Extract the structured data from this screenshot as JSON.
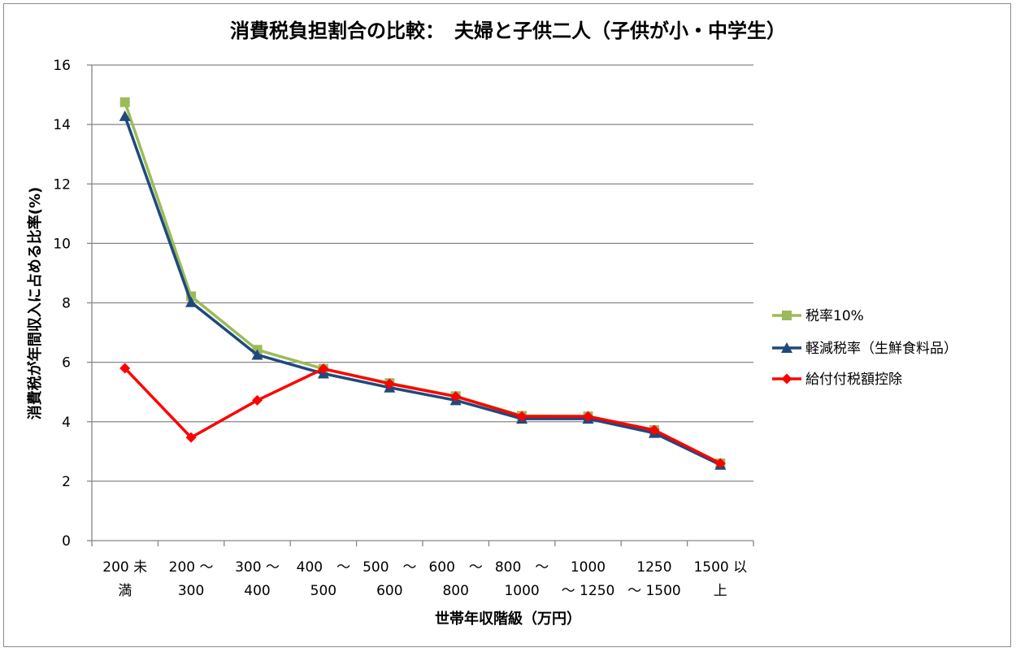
{
  "chart_data": {
    "type": "line",
    "title": "消費税負担割合の比較：　夫婦と子供二人（子供が小・中学生）",
    "xlabel": "世帯年収階級（万円）",
    "ylabel": "消費税が年間収入に占める比率(%)",
    "ylim": [
      0,
      16
    ],
    "yticks": [
      0,
      2,
      4,
      6,
      8,
      10,
      12,
      14,
      16
    ],
    "grid": true,
    "legend_position": "right",
    "categories": [
      [
        "200 未",
        "満"
      ],
      [
        "200 ～",
        "300"
      ],
      [
        "300 ～",
        "400"
      ],
      [
        "400　～",
        "500"
      ],
      [
        "500　～",
        "600"
      ],
      [
        "600　～",
        "800"
      ],
      [
        "800　～",
        "1000"
      ],
      [
        "1000",
        "～ 1250"
      ],
      [
        "1250",
        "～ 1500"
      ],
      [
        "1500 以",
        "上"
      ]
    ],
    "series": [
      {
        "name": "税率10%",
        "color": "#9bbb59",
        "marker": "square",
        "values": [
          14.75,
          8.22,
          6.42,
          5.78,
          5.3,
          4.86,
          4.2,
          4.18,
          3.72,
          2.6
        ]
      },
      {
        "name": "軽減税率（生鮮食料品）",
        "color": "#1f497d",
        "marker": "triangle",
        "values": [
          14.28,
          8.02,
          6.25,
          5.62,
          5.15,
          4.72,
          4.1,
          4.1,
          3.62,
          2.55
        ]
      },
      {
        "name": "給付付税額控除",
        "color": "#ff0000",
        "marker": "diamond",
        "values": [
          5.8,
          3.47,
          4.72,
          5.78,
          5.28,
          4.85,
          4.18,
          4.18,
          3.72,
          2.6
        ]
      }
    ]
  }
}
